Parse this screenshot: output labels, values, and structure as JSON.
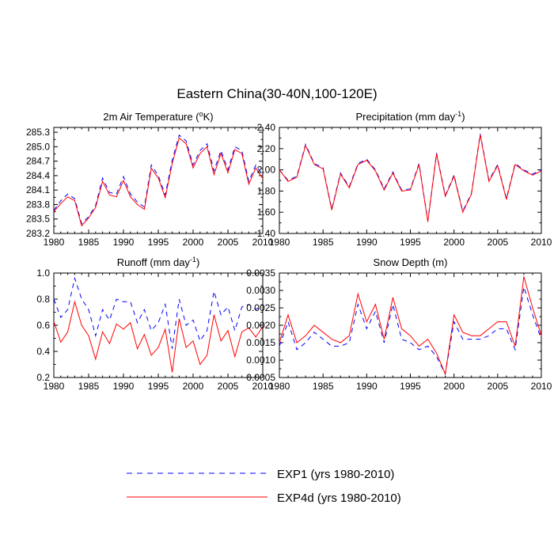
{
  "title": "Eastern China(30-40N,100-120E)",
  "legend": {
    "items": [
      {
        "label": "EXP1 (yrs 1980-2010)",
        "color": "#0000ff",
        "dash": true
      },
      {
        "label": "EXP4d (yrs 1980-2010)",
        "color": "#ff0000",
        "dash": false
      }
    ]
  },
  "chart_data": [
    {
      "type": "line",
      "title": "2m Air Temperature (°K)",
      "title_parts": {
        "pre": "2m Air Temperature (",
        "sup": "o",
        "post": "K)"
      },
      "xlim": [
        1980,
        2010
      ],
      "ylim": [
        283.2,
        285.4
      ],
      "xticks": [
        "1980",
        "1985",
        "1990",
        "1995",
        "2000",
        "2005",
        "2010"
      ],
      "yticks": [
        "283.2",
        "283.5",
        "283.8",
        "284.1",
        "284.4",
        "284.7",
        "285.0",
        "285.3"
      ],
      "x": [
        1980,
        1981,
        1982,
        1983,
        1984,
        1985,
        1986,
        1987,
        1988,
        1989,
        1990,
        1991,
        1992,
        1993,
        1994,
        1995,
        1996,
        1997,
        1998,
        1999,
        2000,
        2001,
        2002,
        2003,
        2004,
        2005,
        2006,
        2007,
        2008,
        2009,
        2010
      ],
      "series": [
        {
          "name": "EXP1 (yrs 1980-2010)",
          "values": [
            283.68,
            283.88,
            284.02,
            283.92,
            283.4,
            283.55,
            283.78,
            284.35,
            284.05,
            284.02,
            284.38,
            284.02,
            283.85,
            283.75,
            284.62,
            284.4,
            284.0,
            284.72,
            285.24,
            285.12,
            284.62,
            284.92,
            285.06,
            284.5,
            284.92,
            284.52,
            285.0,
            284.92,
            284.28,
            284.62,
            284.4
          ]
        },
        {
          "name": "EXP4d (yrs 1980-2010)",
          "values": [
            283.65,
            283.82,
            283.96,
            283.88,
            283.36,
            283.52,
            283.74,
            284.28,
            284.0,
            283.96,
            284.3,
            283.96,
            283.8,
            283.7,
            284.55,
            284.35,
            283.94,
            284.65,
            285.18,
            285.06,
            284.56,
            284.86,
            285.0,
            284.42,
            284.86,
            284.46,
            284.94,
            284.86,
            284.22,
            284.56,
            284.34
          ]
        }
      ]
    },
    {
      "type": "line",
      "title": "Precipitation (mm day-1)",
      "title_parts": {
        "pre": "Precipitation (mm day",
        "sup": "-1",
        "post": ")"
      },
      "xlim": [
        1980,
        2010
      ],
      "ylim": [
        1.4,
        2.4
      ],
      "xticks": [
        "1980",
        "1985",
        "1990",
        "1995",
        "2000",
        "2005",
        "2010"
      ],
      "yticks": [
        "1.40",
        "1.60",
        "1.80",
        "2.00",
        "2.20",
        "2.40"
      ],
      "x": [
        1980,
        1981,
        1982,
        1983,
        1984,
        1985,
        1986,
        1987,
        1988,
        1989,
        1990,
        1991,
        1992,
        1993,
        1994,
        1995,
        1996,
        1997,
        1998,
        1999,
        2000,
        2001,
        2002,
        2003,
        2004,
        2005,
        2006,
        2007,
        2008,
        2009,
        2010
      ],
      "series": [
        {
          "name": "EXP1 (yrs 1980-2010)",
          "values": [
            2.0,
            1.9,
            1.94,
            2.24,
            2.06,
            2.02,
            1.63,
            1.97,
            1.84,
            2.06,
            2.1,
            2.0,
            1.82,
            1.98,
            1.81,
            1.82,
            2.06,
            1.52,
            2.16,
            1.76,
            1.95,
            1.61,
            1.78,
            2.34,
            1.9,
            2.05,
            1.73,
            2.06,
            2.0,
            1.96,
            2.0
          ]
        },
        {
          "name": "EXP4d (yrs 1980-2010)",
          "values": [
            2.0,
            1.89,
            1.93,
            2.23,
            2.05,
            2.01,
            1.62,
            1.96,
            1.83,
            2.05,
            2.09,
            1.99,
            1.81,
            1.97,
            1.8,
            1.81,
            2.05,
            1.51,
            2.15,
            1.75,
            1.94,
            1.6,
            1.77,
            2.33,
            1.89,
            2.04,
            1.72,
            2.05,
            1.99,
            1.95,
            1.99
          ]
        }
      ]
    },
    {
      "type": "line",
      "title": "Runoff (mm day-1)",
      "title_parts": {
        "pre": "Runoff (mm day",
        "sup": "-1",
        "post": ")"
      },
      "xlim": [
        1980,
        2010
      ],
      "ylim": [
        0.2,
        1.0
      ],
      "xticks": [
        "1980",
        "1985",
        "1990",
        "1995",
        "2000",
        "2005",
        "2010"
      ],
      "yticks": [
        "0.2",
        "0.4",
        "0.6",
        "0.8",
        "1.0"
      ],
      "x": [
        1980,
        1981,
        1982,
        1983,
        1984,
        1985,
        1986,
        1987,
        1988,
        1989,
        1990,
        1991,
        1992,
        1993,
        1994,
        1995,
        1996,
        1997,
        1998,
        1999,
        2000,
        2001,
        2002,
        2003,
        2004,
        2005,
        2006,
        2007,
        2008,
        2009,
        2010
      ],
      "series": [
        {
          "name": "EXP1 (yrs 1980-2010)",
          "values": [
            0.8,
            0.66,
            0.72,
            0.96,
            0.8,
            0.72,
            0.52,
            0.72,
            0.64,
            0.8,
            0.78,
            0.78,
            0.62,
            0.72,
            0.56,
            0.62,
            0.76,
            0.42,
            0.8,
            0.6,
            0.64,
            0.48,
            0.56,
            0.86,
            0.68,
            0.74,
            0.56,
            0.74,
            0.76,
            0.72,
            0.76
          ]
        },
        {
          "name": "EXP4d (yrs 1980-2010)",
          "values": [
            0.63,
            0.47,
            0.55,
            0.78,
            0.6,
            0.52,
            0.34,
            0.55,
            0.46,
            0.61,
            0.57,
            0.62,
            0.42,
            0.53,
            0.37,
            0.43,
            0.57,
            0.24,
            0.65,
            0.43,
            0.48,
            0.3,
            0.37,
            0.68,
            0.48,
            0.56,
            0.36,
            0.55,
            0.58,
            0.51,
            0.59
          ]
        }
      ]
    },
    {
      "type": "line",
      "title": "Snow Depth (m)",
      "title_parts": {
        "pre": "Snow Depth (m)",
        "sup": "",
        "post": ""
      },
      "xlim": [
        1980,
        2010
      ],
      "ylim": [
        0.0005,
        0.0035
      ],
      "xticks": [
        "1980",
        "1985",
        "1990",
        "1995",
        "2000",
        "2005",
        "2010"
      ],
      "yticks": [
        "0.0005",
        "0.0010",
        "0.0015",
        "0.0020",
        "0.0025",
        "0.0030",
        "0.0035"
      ],
      "x": [
        1980,
        1981,
        1982,
        1983,
        1984,
        1985,
        1986,
        1987,
        1988,
        1989,
        1990,
        1991,
        1992,
        1993,
        1994,
        1995,
        1996,
        1997,
        1998,
        1999,
        2000,
        2001,
        2002,
        2003,
        2004,
        2005,
        2006,
        2007,
        2008,
        2009,
        2010
      ],
      "series": [
        {
          "name": "EXP1 (yrs 1980-2010)",
          "values": [
            0.0014,
            0.0021,
            0.0013,
            0.0015,
            0.0018,
            0.0016,
            0.0014,
            0.0014,
            0.0015,
            0.0026,
            0.0019,
            0.0024,
            0.0015,
            0.0026,
            0.0016,
            0.0015,
            0.0013,
            0.0014,
            0.0011,
            0.0006,
            0.0021,
            0.0016,
            0.0016,
            0.0016,
            0.0017,
            0.0019,
            0.0019,
            0.0013,
            0.0031,
            0.0023,
            0.0016
          ]
        },
        {
          "name": "EXP4d (yrs 1980-2010)",
          "values": [
            0.0015,
            0.0023,
            0.0015,
            0.0017,
            0.002,
            0.0018,
            0.0016,
            0.0015,
            0.0017,
            0.0029,
            0.0021,
            0.0026,
            0.0016,
            0.0028,
            0.0019,
            0.0017,
            0.0014,
            0.0016,
            0.0012,
            0.0006,
            0.0023,
            0.0018,
            0.0017,
            0.0017,
            0.0019,
            0.0021,
            0.0021,
            0.0014,
            0.0034,
            0.0025,
            0.0017
          ]
        }
      ]
    }
  ]
}
